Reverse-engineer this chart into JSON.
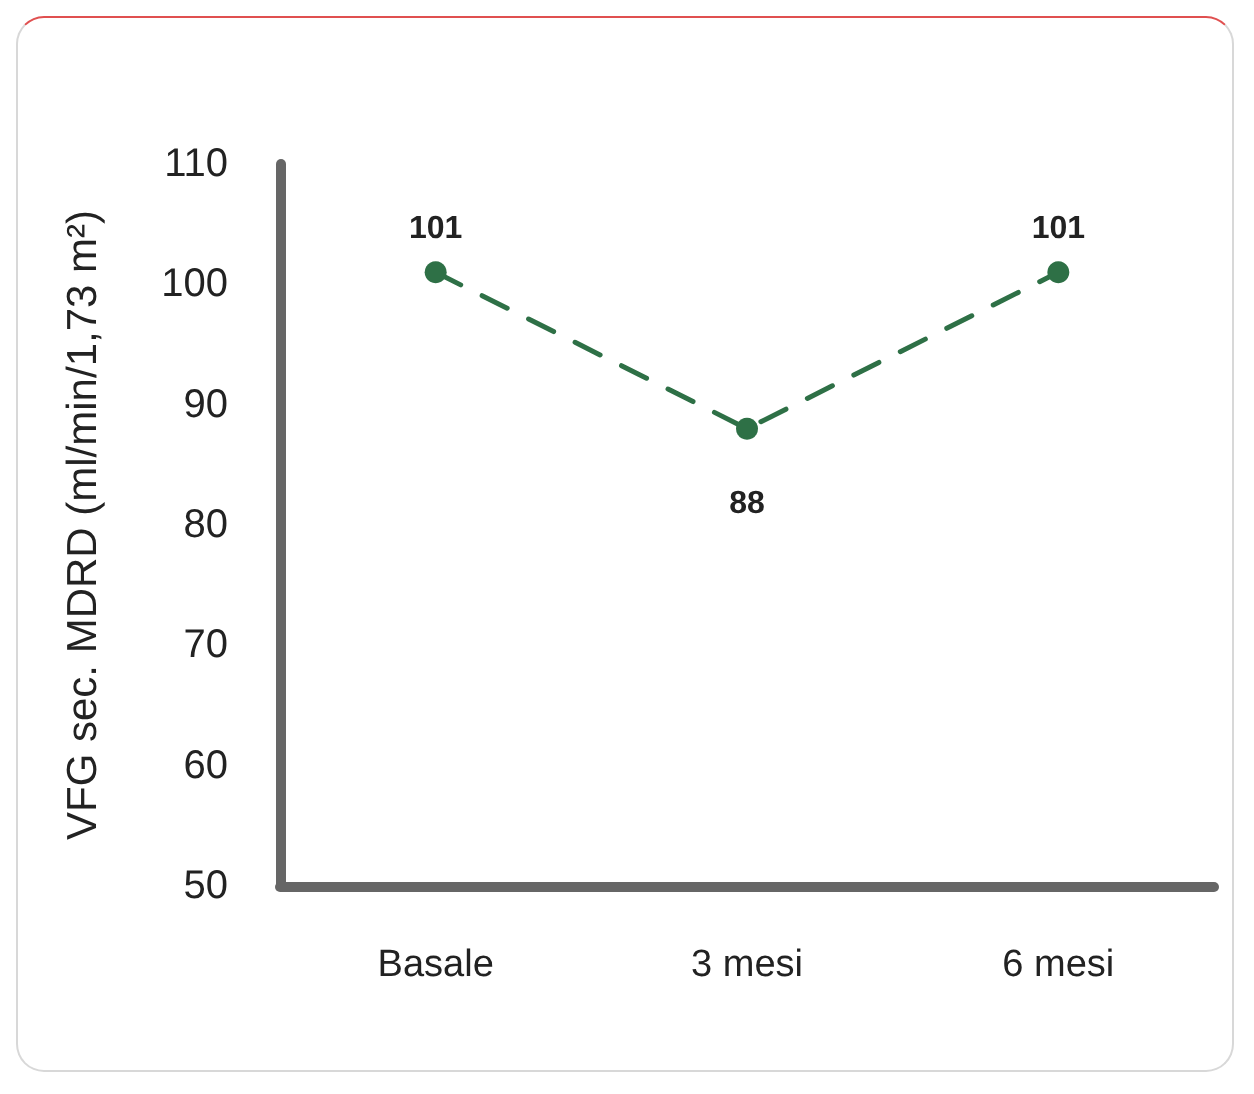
{
  "chart_data": {
    "type": "line",
    "ylabel": "VFG sec. MDRD (ml/min/1,73 m²)",
    "categories": [
      "Basale",
      "3 mesi",
      "6 mesi"
    ],
    "series": [
      {
        "color": "#2e7046",
        "values": [
          101,
          88,
          101
        ]
      }
    ],
    "ylim": [
      50,
      110
    ],
    "yticks": [
      50,
      60,
      70,
      80,
      90,
      100,
      110
    ],
    "grid": false,
    "marker": "circle",
    "line_style": "dashed",
    "data_labels": true
  }
}
